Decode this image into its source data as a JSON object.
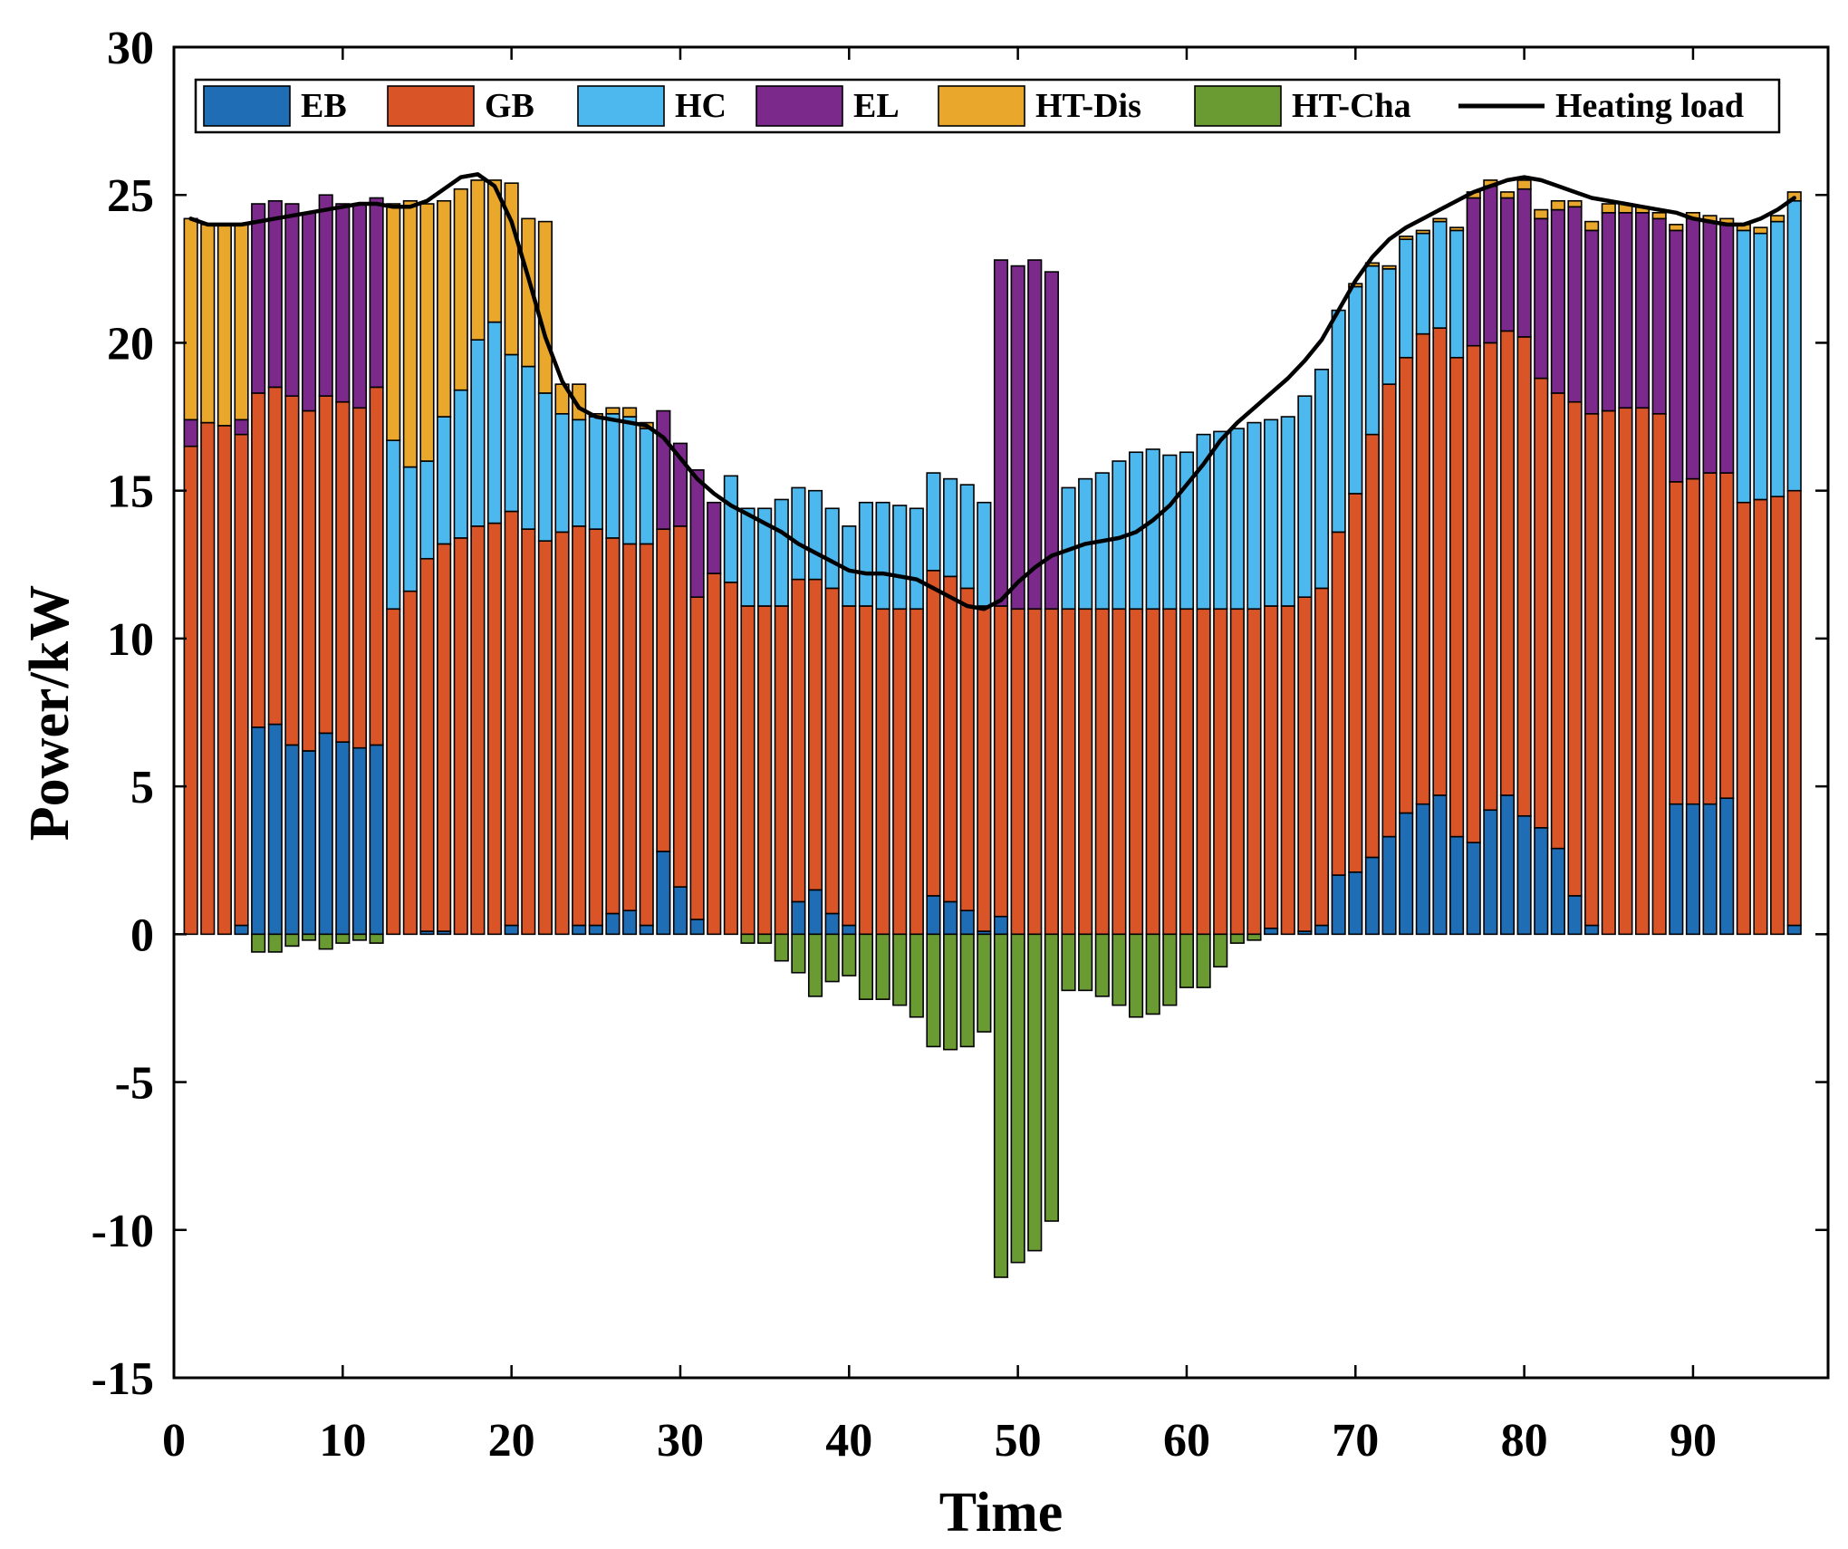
{
  "chart_data": {
    "type": "bar",
    "stacked": true,
    "title": "",
    "xlabel": "Time",
    "ylabel": "Power/kW",
    "xlim": [
      0,
      98
    ],
    "ylim": [
      -15,
      30
    ],
    "xticks": [
      0,
      10,
      20,
      30,
      40,
      50,
      60,
      70,
      80,
      90
    ],
    "yticks": [
      -15,
      -10,
      -5,
      0,
      5,
      10,
      15,
      20,
      25,
      30
    ],
    "legend_position": "top",
    "x": [
      1,
      2,
      3,
      4,
      5,
      6,
      7,
      8,
      9,
      10,
      11,
      12,
      13,
      14,
      15,
      16,
      17,
      18,
      19,
      20,
      21,
      22,
      23,
      24,
      25,
      26,
      27,
      28,
      29,
      30,
      31,
      32,
      33,
      34,
      35,
      36,
      37,
      38,
      39,
      40,
      41,
      42,
      43,
      44,
      45,
      46,
      47,
      48,
      49,
      50,
      51,
      52,
      53,
      54,
      55,
      56,
      57,
      58,
      59,
      60,
      61,
      62,
      63,
      64,
      65,
      66,
      67,
      68,
      69,
      70,
      71,
      72,
      73,
      74,
      75,
      76,
      77,
      78,
      79,
      80,
      81,
      82,
      83,
      84,
      85,
      86,
      87,
      88,
      89,
      90,
      91,
      92,
      93,
      94,
      95,
      96
    ],
    "series": [
      {
        "name": "EB",
        "color": "#1f6db5",
        "values": [
          0,
          0,
          0,
          0.3,
          7.0,
          7.1,
          6.4,
          6.2,
          6.8,
          6.5,
          6.3,
          6.4,
          0,
          0,
          0.1,
          0.1,
          0,
          0,
          0,
          0.3,
          0,
          0,
          0,
          0.3,
          0.3,
          0.7,
          0.8,
          0.3,
          2.8,
          1.6,
          0.5,
          0,
          0,
          0,
          0,
          0,
          1.1,
          1.5,
          0.7,
          0.3,
          0,
          0,
          0,
          0,
          1.3,
          1.1,
          0.8,
          0.1,
          0.6,
          0,
          0,
          0,
          0,
          0,
          0,
          0,
          0,
          0,
          0,
          0,
          0,
          0,
          0,
          0,
          0.2,
          0,
          0.1,
          0.3,
          2.0,
          2.1,
          2.6,
          3.3,
          4.1,
          4.4,
          4.7,
          3.3,
          3.1,
          4.2,
          4.7,
          4.0,
          3.6,
          2.9,
          1.3,
          0.3,
          0,
          0,
          0,
          0,
          4.4,
          4.4,
          4.4,
          4.6,
          0,
          0,
          0,
          0.3
        ]
      },
      {
        "name": "GB",
        "color": "#d95527",
        "values": [
          16.5,
          17.3,
          17.2,
          16.6,
          11.3,
          11.4,
          11.8,
          11.5,
          11.4,
          11.5,
          11.5,
          12.1,
          11.0,
          11.6,
          12.6,
          13.1,
          13.4,
          13.8,
          13.9,
          14.0,
          13.7,
          13.3,
          13.6,
          13.5,
          13.4,
          12.7,
          12.4,
          12.9,
          10.9,
          12.2,
          10.9,
          12.2,
          11.9,
          11.1,
          11.1,
          11.1,
          10.9,
          10.5,
          11.0,
          10.8,
          11.1,
          11.0,
          11.0,
          11.0,
          11.0,
          11.0,
          10.9,
          11.0,
          10.5,
          11.0,
          11.0,
          11.0,
          11.0,
          11.0,
          11.0,
          11.0,
          11.0,
          11.0,
          11.0,
          11.0,
          11.0,
          11.0,
          11.0,
          11.0,
          10.9,
          11.1,
          11.3,
          11.4,
          11.6,
          12.8,
          14.3,
          15.3,
          15.4,
          15.9,
          15.8,
          16.2,
          16.8,
          15.8,
          15.7,
          16.2,
          15.2,
          15.4,
          16.7,
          17.3,
          17.7,
          17.8,
          17.8,
          17.6,
          10.9,
          11.0,
          11.2,
          11.0,
          14.6,
          14.7,
          14.8,
          14.7
        ]
      },
      {
        "name": "HC",
        "color": "#4db8ee",
        "values": [
          0,
          0,
          0,
          0,
          0,
          0,
          0,
          0,
          0,
          0,
          0,
          0,
          5.7,
          4.2,
          3.3,
          4.3,
          5.0,
          6.3,
          6.8,
          5.3,
          5.5,
          5.0,
          4.0,
          3.6,
          3.8,
          4.2,
          4.3,
          3.9,
          0,
          0,
          0,
          0,
          3.6,
          3.3,
          3.3,
          3.6,
          3.1,
          3.0,
          2.7,
          2.7,
          3.5,
          3.6,
          3.5,
          3.4,
          3.3,
          3.3,
          3.5,
          3.5,
          0,
          0,
          0,
          0,
          4.1,
          4.4,
          4.6,
          5.0,
          5.3,
          5.4,
          5.2,
          5.3,
          5.9,
          6.0,
          6.1,
          6.3,
          6.3,
          6.4,
          6.8,
          7.4,
          7.5,
          7.0,
          5.7,
          3.9,
          4.0,
          3.4,
          3.6,
          4.3,
          0,
          0,
          0,
          0,
          0,
          0,
          0,
          0,
          0,
          0,
          0,
          0,
          0,
          0,
          0,
          0,
          9.2,
          9.0,
          9.3,
          9.8
        ]
      },
      {
        "name": "EL",
        "color": "#7b2a8c",
        "values": [
          0.9,
          0,
          0,
          0.5,
          6.4,
          6.3,
          6.5,
          6.7,
          6.8,
          6.7,
          6.9,
          6.4,
          0,
          0,
          0,
          0,
          0,
          0,
          0,
          0,
          0,
          0,
          0,
          0,
          0,
          0,
          0,
          0,
          4.0,
          2.8,
          4.3,
          2.4,
          0,
          0,
          0,
          0,
          0,
          0,
          0,
          0,
          0,
          0,
          0,
          0,
          0,
          0,
          0,
          0,
          11.7,
          11.6,
          11.8,
          11.4,
          0,
          0,
          0,
          0,
          0,
          0,
          0,
          0,
          0,
          0,
          0,
          0,
          0,
          0,
          0,
          0,
          0,
          0,
          0,
          0,
          0,
          0,
          0,
          0,
          5.0,
          5.3,
          4.5,
          5.0,
          5.4,
          6.2,
          6.6,
          6.2,
          6.7,
          6.6,
          6.6,
          6.6,
          8.5,
          8.8,
          8.5,
          8.4,
          0,
          0,
          0,
          0
        ]
      },
      {
        "name": "HT-Dis",
        "color": "#e9a72c",
        "values": [
          6.8,
          6.7,
          6.8,
          6.6,
          0,
          0,
          0,
          0,
          0,
          0,
          0,
          0,
          8.0,
          9.0,
          8.7,
          7.3,
          6.8,
          5.4,
          4.8,
          5.8,
          5.0,
          5.8,
          1.0,
          1.2,
          0.1,
          0.2,
          0.3,
          0.2,
          0,
          0,
          0,
          0,
          0,
          0,
          0,
          0,
          0,
          0,
          0,
          0,
          0,
          0,
          0,
          0,
          0,
          0,
          0,
          0,
          0,
          0,
          0,
          0,
          0,
          0,
          0,
          0,
          0,
          0,
          0,
          0,
          0,
          0,
          0,
          0,
          0,
          0,
          0,
          0,
          0,
          0.1,
          0.1,
          0.1,
          0.1,
          0.1,
          0.1,
          0.1,
          0.2,
          0.2,
          0.2,
          0.3,
          0.3,
          0.3,
          0.2,
          0.3,
          0.3,
          0.3,
          0.2,
          0.2,
          0.2,
          0.2,
          0.2,
          0.2,
          0.2,
          0.2,
          0.2,
          0.3
        ]
      },
      {
        "name": "HT-Cha",
        "color": "#6a9b33",
        "values": [
          0,
          0,
          0,
          0,
          -0.6,
          -0.6,
          -0.4,
          -0.2,
          -0.5,
          -0.3,
          -0.2,
          -0.3,
          0,
          0,
          0,
          0,
          0,
          0,
          0,
          0,
          0,
          0,
          0,
          0,
          0,
          0,
          0,
          0,
          0,
          0,
          0,
          0,
          0,
          -0.3,
          -0.3,
          -0.9,
          -1.3,
          -2.1,
          -1.6,
          -1.4,
          -2.2,
          -2.2,
          -2.4,
          -2.8,
          -3.8,
          -3.9,
          -3.8,
          -3.3,
          -11.6,
          -11.1,
          -10.7,
          -9.7,
          -1.9,
          -1.9,
          -2.1,
          -2.4,
          -2.8,
          -2.7,
          -2.4,
          -1.8,
          -1.8,
          -1.1,
          -0.3,
          -0.2,
          0,
          0,
          0,
          0,
          0,
          0,
          0,
          0,
          0,
          0,
          0,
          0,
          0,
          0,
          0,
          0,
          0,
          0,
          0,
          0,
          0,
          0,
          0,
          0,
          0,
          0,
          0,
          0,
          0,
          0,
          0,
          0
        ]
      },
      {
        "name": "Heating load",
        "type": "line",
        "color": "#000000",
        "values": [
          24.2,
          24.0,
          24.0,
          24.0,
          24.1,
          24.2,
          24.3,
          24.4,
          24.5,
          24.6,
          24.7,
          24.7,
          24.6,
          24.6,
          24.8,
          25.2,
          25.6,
          25.7,
          25.3,
          24.1,
          22.2,
          20.2,
          18.7,
          17.8,
          17.5,
          17.4,
          17.3,
          17.2,
          16.8,
          16.1,
          15.4,
          14.9,
          14.5,
          14.2,
          13.9,
          13.6,
          13.2,
          12.9,
          12.6,
          12.3,
          12.2,
          12.2,
          12.1,
          12.0,
          11.7,
          11.4,
          11.1,
          11.0,
          11.3,
          11.9,
          12.4,
          12.8,
          13.0,
          13.2,
          13.3,
          13.4,
          13.6,
          14.0,
          14.5,
          15.2,
          15.9,
          16.7,
          17.3,
          17.8,
          18.3,
          18.8,
          19.4,
          20.1,
          21.1,
          22.1,
          22.9,
          23.5,
          23.9,
          24.2,
          24.5,
          24.8,
          25.1,
          25.3,
          25.5,
          25.6,
          25.5,
          25.3,
          25.1,
          24.9,
          24.8,
          24.7,
          24.6,
          24.5,
          24.4,
          24.2,
          24.1,
          24.0,
          24.0,
          24.2,
          24.5,
          24.9
        ]
      }
    ]
  }
}
